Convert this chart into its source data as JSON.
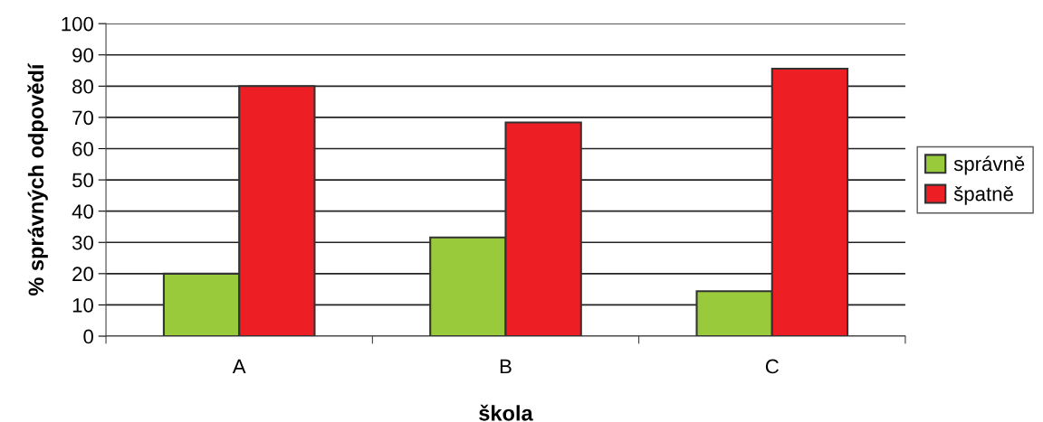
{
  "chart_data": {
    "type": "bar",
    "xlabel": "škola",
    "ylabel": "% správných odpovědí",
    "categories": [
      "A",
      "B",
      "C"
    ],
    "series": [
      {
        "name": "správně",
        "color": "#99ca3c",
        "values": [
          20,
          31.6,
          14.4
        ]
      },
      {
        "name": "špatně",
        "color": "#ed1f24",
        "values": [
          80,
          68.4,
          85.6
        ]
      }
    ],
    "ylim": [
      0,
      100
    ],
    "yticks": [
      0,
      10,
      20,
      30,
      40,
      50,
      60,
      70,
      80,
      90,
      100
    ],
    "grid": "y",
    "legend": "right"
  }
}
